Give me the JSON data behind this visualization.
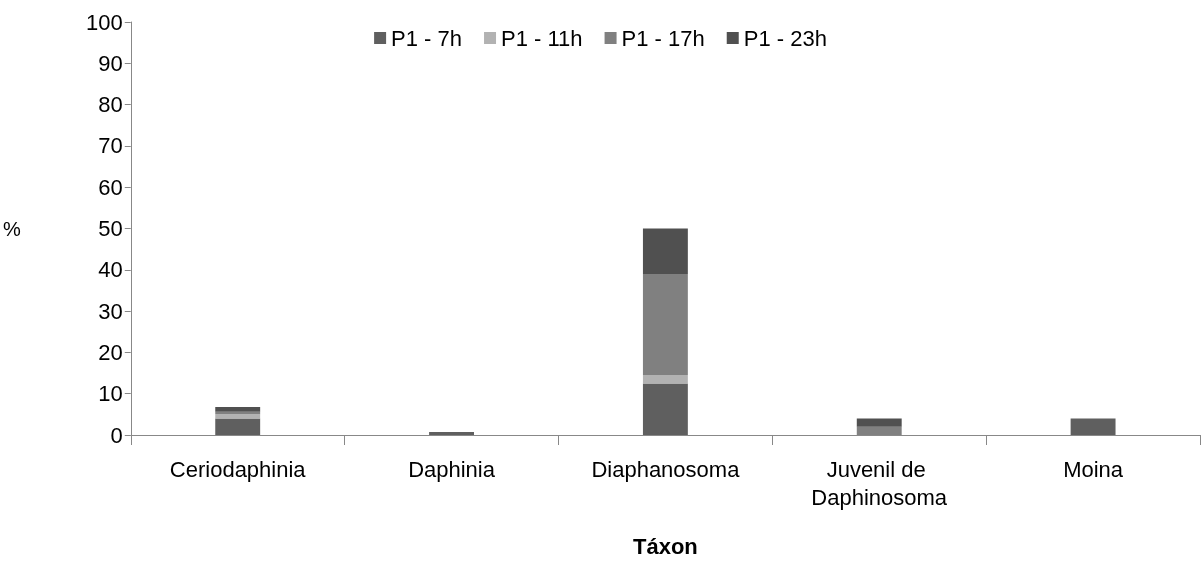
{
  "chart_data": {
    "type": "bar",
    "stacked": true,
    "xlabel": "Táxon",
    "ylabel": "%",
    "categories": [
      "Ceriodaphinia",
      "Daphinia",
      "Diaphanosoma",
      "Juvenil de Daphinosoma",
      "Moina"
    ],
    "series": [
      {
        "name": "P1 - 7h",
        "color": "#5f5f5f",
        "values": [
          4,
          0.7,
          12.5,
          0,
          4
        ]
      },
      {
        "name": "P1 - 11h",
        "color": "#b2b2b2",
        "values": [
          1,
          0,
          2,
          0,
          0
        ]
      },
      {
        "name": "P1 - 17h",
        "color": "#808080",
        "values": [
          0.6,
          0,
          24.5,
          2,
          0
        ]
      },
      {
        "name": "P1 - 23h",
        "color": "#505050",
        "values": [
          1.2,
          0,
          11,
          2,
          0
        ]
      }
    ],
    "ylim": [
      0,
      100
    ],
    "yticks": [
      0,
      10,
      20,
      30,
      40,
      50,
      60,
      70,
      80,
      90,
      100
    ],
    "grid": false,
    "legend": "top"
  }
}
